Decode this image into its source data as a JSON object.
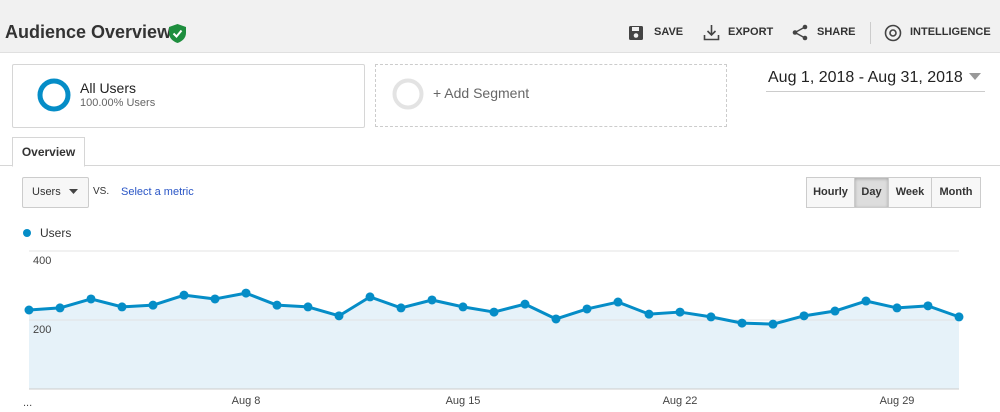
{
  "header": {
    "title": "Audience Overview",
    "actions": [
      "SAVE",
      "EXPORT",
      "SHARE",
      "INTELLIGENCE"
    ]
  },
  "segments": {
    "active": {
      "name": "All Users",
      "share": "100.00% Users"
    },
    "add": "+ Add Segment"
  },
  "date_range": "Aug 1, 2018 - Aug 31, 2018",
  "tabs": [
    "Overview"
  ],
  "metric_picker": {
    "metric": "Users",
    "vs": "VS.",
    "secondary": "Select a metric"
  },
  "granularity": {
    "options": [
      "Hourly",
      "Day",
      "Week",
      "Month"
    ],
    "selected": 1
  },
  "chart_data": {
    "type": "line",
    "categories": [
      null,
      null,
      null,
      null,
      null,
      null,
      null,
      "Aug 8",
      null,
      null,
      null,
      null,
      null,
      null,
      "Aug 15",
      null,
      null,
      null,
      null,
      null,
      null,
      "Aug 22",
      null,
      null,
      null,
      null,
      null,
      null,
      "Aug 29",
      null,
      null
    ],
    "axis_note": "...",
    "series": [
      {
        "name": "Users",
        "color": "#058dc7",
        "values": [
          229,
          235,
          261,
          238,
          243,
          272,
          261,
          278,
          243,
          238,
          212,
          267,
          235,
          258,
          238,
          223,
          246,
          203,
          232,
          252,
          217,
          223,
          209,
          191,
          188,
          212,
          226,
          255,
          235,
          241,
          209
        ]
      }
    ],
    "ylim": [
      0,
      400
    ],
    "yticks": [
      200,
      400
    ],
    "grid": true,
    "area": true
  }
}
